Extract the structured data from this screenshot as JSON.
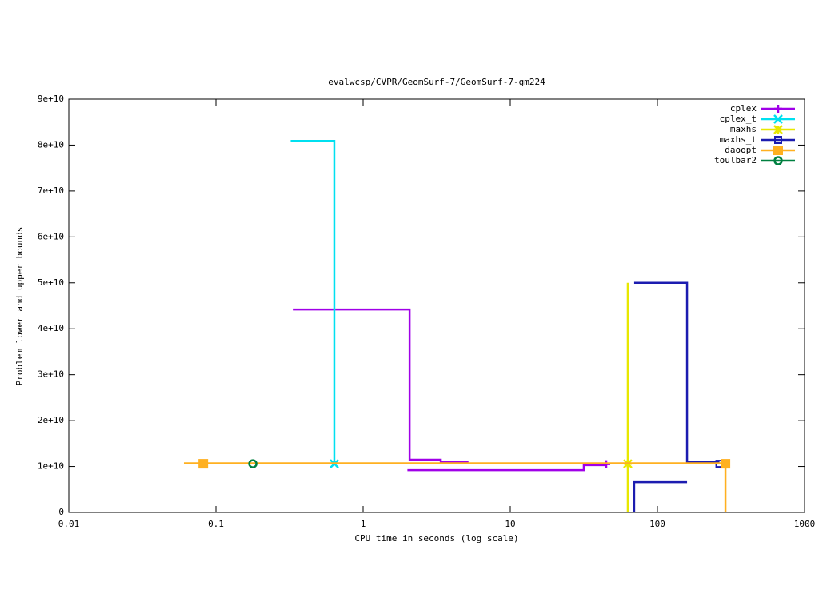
{
  "chart_data": {
    "type": "line",
    "title": "evalwcsp/CVPR/GeomSurf-7/GeomSurf-7-gm224",
    "x_label": "CPU time in seconds (log scale)",
    "y_label": "Problem lower and upper bounds",
    "x_log": true,
    "xlim": [
      0.01,
      1000
    ],
    "xticks": [
      0.01,
      0.1,
      1,
      10,
      100,
      1000
    ],
    "ylim": [
      0,
      90000000000
    ],
    "yticks": [
      0,
      {
        "value": 10000000000,
        "label": "1e+10"
      },
      {
        "value": 20000000000,
        "label": "2e+10"
      },
      {
        "value": 30000000000,
        "label": "3e+10"
      },
      {
        "value": 40000000000,
        "label": "4e+10"
      },
      {
        "value": 50000000000,
        "label": "5e+10"
      },
      {
        "value": 60000000000,
        "label": "6e+10"
      },
      {
        "value": 70000000000,
        "label": "7e+10"
      },
      {
        "value": 80000000000,
        "label": "8e+10"
      },
      {
        "value": 90000000000,
        "label": "9e+10"
      }
    ],
    "legend": "top-right",
    "series": [
      {
        "name": "cplex",
        "color": "#a000e8",
        "marker": "plus",
        "x": [
          0.333,
          2.07,
          2.07,
          3.37,
          3.37,
          5.2,
          null,
          2.0,
          31.6,
          31.6,
          44.9
        ],
        "values": [
          44200000000,
          44200000000,
          11500000000,
          11500000000,
          11000000000,
          11000000000,
          null,
          9200000000,
          9200000000,
          10300000000,
          10300000000
        ],
        "points_x": [
          44.9
        ],
        "points_y": [
          10500000000
        ]
      },
      {
        "name": "cplex_t",
        "color": "#00e0f0",
        "marker": "cross",
        "x": [
          0.322,
          0.637,
          0.637
        ],
        "values": [
          80900000000,
          80900000000,
          10600000000
        ],
        "points_x": [
          0.637
        ],
        "points_y": [
          10600000000
        ]
      },
      {
        "name": "maxhs",
        "color": "#e8e800",
        "marker": "star",
        "x": [
          62.9,
          62.9
        ],
        "values": [
          50000000000,
          0
        ],
        "points_x": [
          62.9
        ],
        "points_y": [
          10600000000
        ]
      },
      {
        "name": "maxhs_t",
        "color": "#1c1cb0",
        "marker": "square",
        "x": [
          69.5,
          159,
          159,
          264,
          null,
          69.5,
          69.5,
          159
        ],
        "values": [
          50000000000,
          50000000000,
          11000000000,
          11000000000,
          null,
          0,
          6600000000,
          6600000000
        ],
        "points_x": [
          264
        ],
        "points_y": [
          10600000000
        ]
      },
      {
        "name": "daoopt",
        "color": "#ffb020",
        "marker": "filled-square",
        "x": [
          0.0606,
          290,
          290
        ],
        "values": [
          10700000000,
          10700000000,
          0
        ],
        "points_x": [
          0.082,
          290
        ],
        "points_y": [
          10600000000,
          10600000000
        ]
      },
      {
        "name": "toulbar2",
        "color": "#008040",
        "marker": "circle",
        "x": [],
        "values": [],
        "points_x": [
          0.178
        ],
        "points_y": [
          10600000000
        ]
      }
    ]
  }
}
